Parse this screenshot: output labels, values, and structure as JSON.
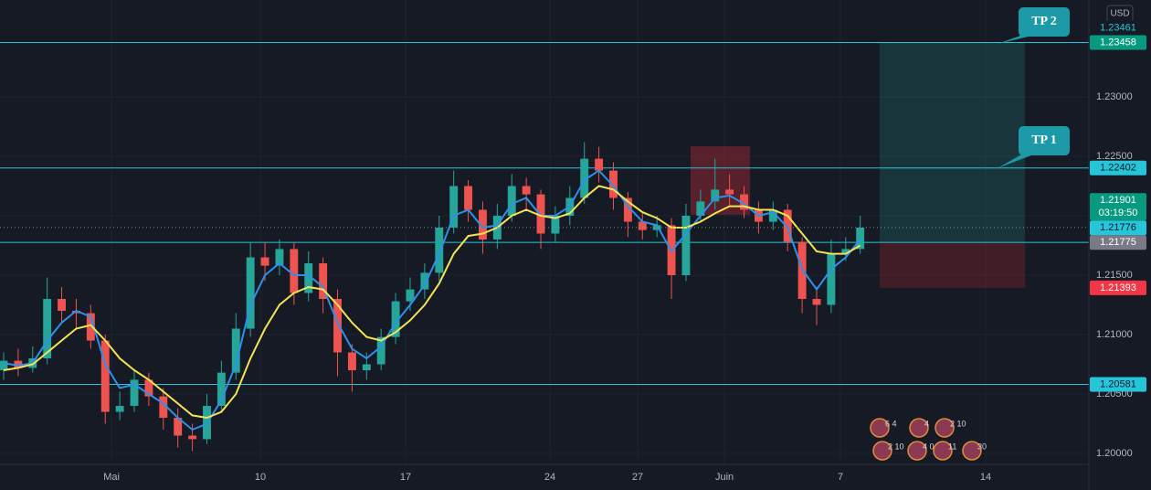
{
  "chart_data": {
    "type": "candlestick",
    "currency": "USD",
    "xlim": [
      -0.25,
      74.75
    ],
    "xticks": [
      {
        "value": 7.43,
        "label": "Mai"
      },
      {
        "value": 17.68,
        "label": "10"
      },
      {
        "value": 27.69,
        "label": "17"
      },
      {
        "value": 37.63,
        "label": "24"
      },
      {
        "value": 43.67,
        "label": "27"
      },
      {
        "value": 49.65,
        "label": "Juin"
      },
      {
        "value": 57.64,
        "label": "7"
      },
      {
        "value": 67.64,
        "label": "14"
      }
    ],
    "ylim": [
      1.199077,
      1.238154
    ],
    "yticks": [
      {
        "value": 1.2,
        "label": "1.20000"
      },
      {
        "value": 1.205,
        "label": "1.20500"
      },
      {
        "value": 1.21,
        "label": "1.21000"
      },
      {
        "value": 1.215,
        "label": "1.21500"
      },
      {
        "value": 1.22,
        "label": "1.22000"
      },
      {
        "value": 1.225,
        "label": "1.22500"
      },
      {
        "value": 1.23,
        "label": "1.23000"
      }
    ],
    "grid": true,
    "up_color": "#26a69a",
    "down_color": "#ef5350",
    "open": [
      1.207,
      1.2078,
      1.2072,
      1.208,
      1.213,
      1.212,
      1.2118,
      1.2095,
      1.2035,
      1.204,
      1.2062,
      1.2048,
      1.203,
      1.2015,
      1.2012,
      1.204,
      1.2068,
      1.2105,
      1.2165,
      1.2158,
      1.2172,
      1.2135,
      1.216,
      1.213,
      1.2085,
      1.207,
      1.2075,
      1.2098,
      1.2128,
      1.2138,
      1.2152,
      1.219,
      1.2225,
      1.2205,
      1.218,
      1.22,
      1.2225,
      1.2218,
      1.2185,
      1.22,
      1.2215,
      1.2248,
      1.2238,
      1.2215,
      1.2195,
      1.2188,
      1.2192,
      1.215,
      1.22,
      1.2212,
      1.2222,
      1.2218,
      1.2205,
      1.2195,
      1.2205,
      1.2178,
      1.213,
      1.2125,
      1.2168,
      1.2172
    ],
    "high": [
      1.2085,
      1.2088,
      1.209,
      1.2148,
      1.214,
      1.213,
      1.2125,
      1.21,
      1.2052,
      1.207,
      1.2068,
      1.2055,
      1.2038,
      1.2025,
      1.205,
      1.2078,
      1.2118,
      1.2178,
      1.2178,
      1.218,
      1.2178,
      1.217,
      1.2165,
      1.2138,
      1.2092,
      1.2085,
      1.2105,
      1.2135,
      1.2148,
      1.216,
      1.22,
      1.2238,
      1.223,
      1.2212,
      1.221,
      1.2235,
      1.2232,
      1.2222,
      1.2208,
      1.2225,
      1.2262,
      1.2258,
      1.2245,
      1.222,
      1.2202,
      1.22,
      1.2198,
      1.221,
      1.2222,
      1.2248,
      1.2235,
      1.2225,
      1.2212,
      1.2212,
      1.221,
      1.2182,
      1.214,
      1.218,
      1.2182,
      1.22
    ],
    "low": [
      1.2062,
      1.2065,
      1.2068,
      1.2075,
      1.211,
      1.2105,
      1.2088,
      1.2025,
      1.2028,
      1.2035,
      1.204,
      1.202,
      1.2005,
      1.2002,
      1.2008,
      1.2035,
      1.2062,
      1.2098,
      1.2145,
      1.215,
      1.2125,
      1.2128,
      1.2118,
      1.2065,
      1.2052,
      1.2062,
      1.207,
      1.2092,
      1.212,
      1.213,
      1.2145,
      1.2185,
      1.2195,
      1.2168,
      1.2172,
      1.2195,
      1.2205,
      1.2172,
      1.2178,
      1.2192,
      1.221,
      1.2228,
      1.2205,
      1.2182,
      1.218,
      1.2182,
      1.213,
      1.2145,
      1.2195,
      1.2205,
      1.2208,
      1.2198,
      1.2185,
      1.2188,
      1.217,
      1.2118,
      1.2108,
      1.2118,
      1.2162,
      1.2168
    ],
    "close": [
      1.2078,
      1.2072,
      1.208,
      1.213,
      1.212,
      1.2118,
      1.2095,
      1.2035,
      1.204,
      1.2062,
      1.2048,
      1.203,
      1.2015,
      1.2012,
      1.204,
      1.2068,
      1.2105,
      1.2165,
      1.2158,
      1.2172,
      1.2135,
      1.216,
      1.213,
      1.2085,
      1.207,
      1.2075,
      1.2098,
      1.2128,
      1.2138,
      1.2152,
      1.219,
      1.2225,
      1.2205,
      1.218,
      1.22,
      1.2225,
      1.2218,
      1.2185,
      1.22,
      1.2215,
      1.2248,
      1.2238,
      1.2215,
      1.2195,
      1.2188,
      1.2192,
      1.215,
      1.22,
      1.2212,
      1.2222,
      1.2218,
      1.2205,
      1.2195,
      1.2205,
      1.2178,
      1.213,
      1.2125,
      1.2168,
      1.2172,
      1.219
    ],
    "lines": [
      {
        "color": "#2e90e8",
        "values": [
          1.2076,
          1.2074,
          1.2076,
          1.2095,
          1.211,
          1.212,
          1.2115,
          1.2075,
          1.2055,
          1.2058,
          1.205,
          1.2042,
          1.203,
          1.202,
          1.2025,
          1.2045,
          1.2075,
          1.2125,
          1.215,
          1.216,
          1.215,
          1.215,
          1.214,
          1.211,
          1.2088,
          1.208,
          1.209,
          1.211,
          1.2125,
          1.2142,
          1.2168,
          1.22,
          1.2205,
          1.219,
          1.2192,
          1.221,
          1.2215,
          1.22,
          1.22,
          1.2208,
          1.223,
          1.2238,
          1.2225,
          1.2208,
          1.2195,
          1.2192,
          1.217,
          1.2185,
          1.22,
          1.2215,
          1.2217,
          1.221,
          1.22,
          1.2203,
          1.219,
          1.2155,
          1.2138,
          1.2155,
          1.2165,
          1.218
        ]
      },
      {
        "color": "#f5e356",
        "values": [
          1.207,
          1.2072,
          1.2075,
          1.2085,
          1.2095,
          1.2105,
          1.2108,
          1.2095,
          1.208,
          1.207,
          1.2062,
          1.2052,
          1.2042,
          1.2032,
          1.203,
          1.2035,
          1.205,
          1.208,
          1.2105,
          1.2125,
          1.2135,
          1.214,
          1.2138,
          1.2125,
          1.211,
          1.2098,
          1.2095,
          1.2102,
          1.2112,
          1.2125,
          1.2143,
          1.2168,
          1.2183,
          1.2185,
          1.219,
          1.22,
          1.2205,
          1.22,
          1.2198,
          1.2202,
          1.2215,
          1.2225,
          1.2222,
          1.2212,
          1.2203,
          1.2198,
          1.219,
          1.219,
          1.2195,
          1.2202,
          1.2208,
          1.2208,
          1.2205,
          1.2205,
          1.22,
          1.2185,
          1.217,
          1.2168,
          1.2168,
          1.2175
        ]
      }
    ],
    "levels": {
      "color": "#26c6da",
      "values": [
        1.23458,
        1.22402,
        1.21776,
        1.20581
      ]
    },
    "zones": [
      {
        "color": "rgba(38,166,154,0.2)",
        "x": [
          60.34,
          70.35
        ],
        "y": [
          1.21776,
          1.23458
        ]
      },
      {
        "color": "rgba(178,40,51,0.28)",
        "x": [
          60.34,
          70.35
        ],
        "y": [
          1.21393,
          1.21776
        ]
      },
      {
        "color": "rgba(178,40,51,0.42)",
        "x": [
          47.32,
          51.41
        ],
        "y": [
          1.22008,
          1.22585
        ]
      }
    ],
    "price_tags": [
      {
        "value": 1.23461,
        "bg": "#161a25",
        "fg": "#26c6da"
      },
      {
        "value": 1.23458,
        "bg": "#089981",
        "fg": "#ffffff"
      },
      {
        "value": 1.22402,
        "bg": "#26c6da",
        "fg": "#131722"
      },
      {
        "value": 1.21901,
        "countdown": "03:19:50",
        "bg": "#089981",
        "fg": "#ffffff"
      },
      {
        "value": 1.21776,
        "bg": "#26c6da",
        "fg": "#131722"
      },
      {
        "value": 1.21775,
        "bg": "#787b86",
        "fg": "#ffffff"
      },
      {
        "value": 1.21393,
        "bg": "#f23645",
        "fg": "#ffffff"
      },
      {
        "value": 1.20581,
        "bg": "#26c6da",
        "fg": "#131722"
      }
    ],
    "annotations": [
      "TP 2",
      "TP 1"
    ],
    "events": [
      "6 4",
      "4",
      "2 10",
      "2 10",
      "4 0",
      "11",
      "30"
    ]
  }
}
